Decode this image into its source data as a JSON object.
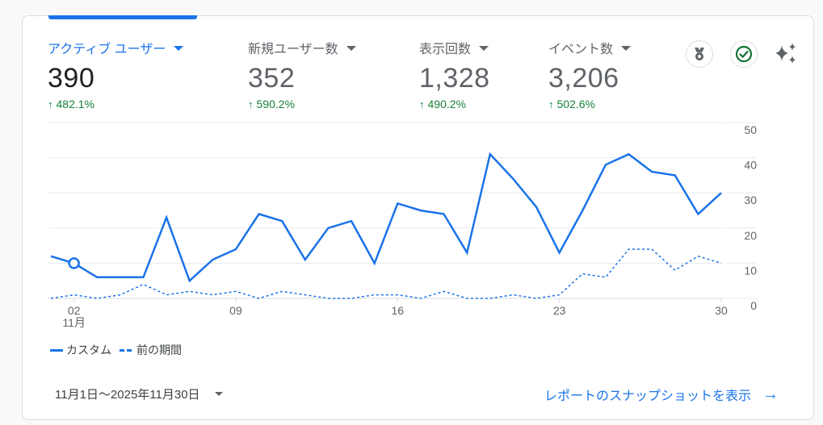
{
  "metrics": [
    {
      "label": "アクティブ ユーザー",
      "value": "390",
      "delta": "482.1%",
      "active": true
    },
    {
      "label": "新規ユーザー数",
      "value": "352",
      "delta": "590.2%",
      "active": false
    },
    {
      "label": "表示回数",
      "value": "1,328",
      "delta": "490.2%",
      "active": false
    },
    {
      "label": "イベント数",
      "value": "3,206",
      "delta": "502.6%",
      "active": false
    }
  ],
  "delta_arrow": "↑",
  "icons": {
    "medal": "medal-icon",
    "check": "check-circle-icon",
    "sparkle": "sparkle-icon"
  },
  "colors": {
    "accent": "#1a73e8",
    "positive": "#188038",
    "text_secondary": "#5f6368",
    "grid": "#e8eaed"
  },
  "legend": {
    "current": "カスタム",
    "previous": "前の期間"
  },
  "date_range": "11月1日～2025年11月30日",
  "snapshot_link": "レポートのスナップショットを表示",
  "snapshot_arrow": "→",
  "chart_data": {
    "type": "line",
    "title": "",
    "xlabel": "",
    "ylabel": "",
    "x": [
      1,
      2,
      3,
      4,
      5,
      6,
      7,
      8,
      9,
      10,
      11,
      12,
      13,
      14,
      15,
      16,
      17,
      18,
      19,
      20,
      21,
      22,
      23,
      24,
      25,
      26,
      27,
      28,
      29,
      30
    ],
    "x_ticks": [
      "02",
      "09",
      "16",
      "23",
      "30"
    ],
    "x_tick_days": [
      2,
      9,
      16,
      23,
      30
    ],
    "x_month_label": "11月",
    "y_ticks": [
      "0",
      "10",
      "20",
      "30",
      "40",
      "50"
    ],
    "ylim": [
      0,
      50
    ],
    "y_axis_position": "right",
    "grid": true,
    "legend_position": "bottom-left",
    "series": [
      {
        "name": "カスタム",
        "style": "solid",
        "values": [
          12,
          10,
          6,
          6,
          6,
          23,
          5,
          11,
          14,
          24,
          22,
          11,
          20,
          22,
          10,
          27,
          25,
          24,
          13,
          41,
          34,
          26,
          13,
          25,
          38,
          41,
          36,
          35,
          24,
          30
        ]
      },
      {
        "name": "前の期間",
        "style": "dashed",
        "values": [
          0,
          1,
          0,
          1,
          4,
          1,
          2,
          1,
          2,
          0,
          2,
          1,
          0,
          0,
          1,
          1,
          0,
          2,
          0,
          0,
          1,
          0,
          1,
          7,
          6,
          14,
          14,
          8,
          12,
          10
        ]
      }
    ],
    "highlight_point": {
      "day": 2,
      "series": "カスタム"
    }
  }
}
